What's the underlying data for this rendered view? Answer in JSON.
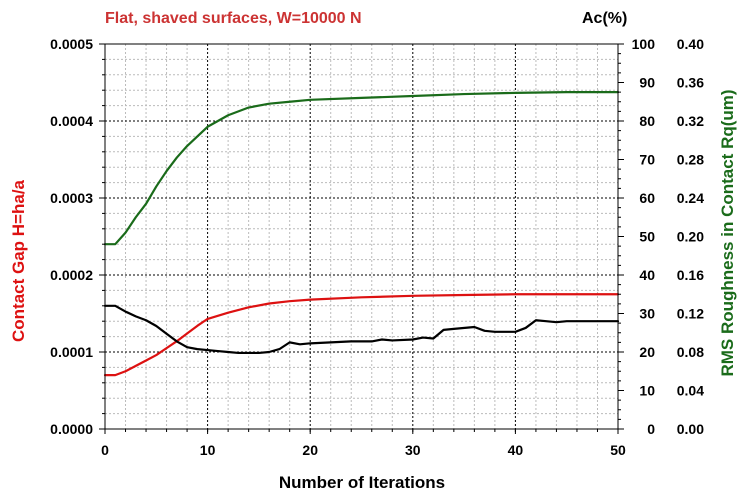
{
  "chart_data": {
    "type": "line",
    "title": "Flat, shaved surfaces, W=10000 N",
    "xlabel": "Number of Iterations",
    "ylabel_left": "Contact Gap H=ha/a",
    "ylabel_right_top": "Ac(%)",
    "ylabel_right": "RMS Roughness in Contact Rq(um)",
    "xlim": [
      0,
      50
    ],
    "ylim_left": [
      0,
      0.0005
    ],
    "ylim_ac": [
      0,
      100
    ],
    "ylim_rq": [
      0,
      0.4
    ],
    "x_ticks": [
      "0",
      "10",
      "20",
      "30",
      "40",
      "50"
    ],
    "y_ticks_left": [
      "0.0000",
      "0.0001",
      "0.0002",
      "0.0003",
      "0.0004",
      "0.0005"
    ],
    "y_ticks_ac": [
      "0",
      "10",
      "20",
      "30",
      "40",
      "50",
      "60",
      "70",
      "80",
      "90",
      "100"
    ],
    "y_ticks_rq": [
      "0.00",
      "0.04",
      "0.08",
      "0.12",
      "0.16",
      "0.20",
      "0.24",
      "0.28",
      "0.32",
      "0.36",
      "0.40"
    ],
    "grid": true,
    "colors": {
      "title": "#cc3333",
      "contact_gap": "#dd1111",
      "ac": "#1a6b1a",
      "rq": "#000000",
      "left_label": "#dd1111",
      "right_label": "#1a6b1a",
      "major_grid": "#000000",
      "minor_grid": "#bbbbbb"
    },
    "series": [
      {
        "key": "contact_gap",
        "axis": "left",
        "x": [
          0,
          1,
          2,
          3,
          4,
          5,
          6,
          7,
          8,
          9,
          10,
          12,
          14,
          16,
          18,
          20,
          25,
          30,
          35,
          40,
          45,
          50
        ],
        "values": [
          7e-05,
          7e-05,
          7.5e-05,
          8.2e-05,
          8.9e-05,
          9.6e-05,
          0.000105,
          0.000114,
          0.000124,
          0.000134,
          0.000143,
          0.000151,
          0.000158,
          0.000163,
          0.000166,
          0.000168,
          0.000171,
          0.000173,
          0.000174,
          0.000175,
          0.000175,
          0.000175
        ]
      },
      {
        "key": "ac",
        "axis": "ac",
        "x": [
          0,
          1,
          2,
          3,
          4,
          5,
          6,
          7,
          8,
          9,
          10,
          12,
          14,
          16,
          18,
          20,
          25,
          30,
          35,
          40,
          45,
          50
        ],
        "values": [
          48,
          48,
          51,
          55,
          58.5,
          63,
          67,
          70.5,
          73.5,
          76,
          78.5,
          81.5,
          83.5,
          84.5,
          85,
          85.5,
          86,
          86.5,
          87,
          87.3,
          87.5,
          87.5
        ]
      },
      {
        "key": "rq",
        "axis": "rq",
        "x": [
          0,
          1,
          2,
          3,
          4,
          5,
          6,
          7,
          8,
          9,
          10,
          11,
          12,
          13,
          14,
          15,
          16,
          17,
          18,
          19,
          20,
          22,
          24,
          26,
          27,
          28,
          30,
          31,
          32,
          33,
          34,
          36,
          37,
          38,
          40,
          41,
          42,
          43,
          44,
          45,
          50
        ],
        "values": [
          0.128,
          0.128,
          0.122,
          0.117,
          0.113,
          0.107,
          0.099,
          0.091,
          0.085,
          0.083,
          0.082,
          0.081,
          0.08,
          0.079,
          0.079,
          0.079,
          0.08,
          0.083,
          0.09,
          0.088,
          0.089,
          0.09,
          0.091,
          0.091,
          0.093,
          0.092,
          0.093,
          0.095,
          0.094,
          0.103,
          0.104,
          0.106,
          0.102,
          0.101,
          0.101,
          0.105,
          0.113,
          0.112,
          0.111,
          0.112,
          0.112
        ]
      }
    ]
  }
}
